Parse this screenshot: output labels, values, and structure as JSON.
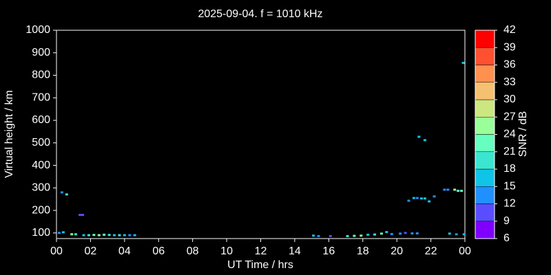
{
  "chart_data": {
    "type": "scatter",
    "title": "2025-09-04. f = 1010 kHz",
    "xlabel": "UT Time / hrs",
    "ylabel": "Virtual height / km",
    "colorbar_label": "SNR / dB",
    "xlim": [
      0,
      24
    ],
    "xticks": [
      {
        "value": 0,
        "label": "00"
      },
      {
        "value": 2,
        "label": "02"
      },
      {
        "value": 4,
        "label": "04"
      },
      {
        "value": 6,
        "label": "06"
      },
      {
        "value": 8,
        "label": "08"
      },
      10,
      12,
      14,
      16,
      18,
      20,
      22,
      {
        "value": 24,
        "label": "00"
      }
    ],
    "ylim": [
      75,
      1000
    ],
    "yticks": [
      100,
      200,
      300,
      400,
      500,
      600,
      700,
      800,
      900,
      1000
    ],
    "clim": [
      6,
      42
    ],
    "cticks": [
      6,
      9,
      12,
      15,
      18,
      21,
      24,
      27,
      30,
      33,
      36,
      39,
      42
    ],
    "colorscale": [
      "#8000ff",
      "#5a4dff",
      "#2090ff",
      "#10c4e8",
      "#3ae6d0",
      "#66ffbf",
      "#99ff99",
      "#cce680",
      "#f5c070",
      "#ff9050",
      "#ff5030",
      "#ff0000"
    ],
    "x": [
      0.16,
      0.4,
      0.32,
      0.6,
      0.9,
      1.13,
      1.38,
      1.54,
      1.6,
      1.9,
      2.2,
      2.5,
      2.8,
      3.1,
      3.4,
      3.7,
      4.0,
      4.3,
      4.6,
      15.1,
      15.4,
      16.1,
      17.1,
      17.5,
      17.9,
      18.3,
      18.7,
      19.1,
      19.4,
      19.7,
      20.2,
      20.5,
      20.9,
      21.2,
      20.7,
      21.0,
      21.2,
      21.45,
      21.65,
      21.9,
      22.2,
      21.3,
      21.65,
      22.8,
      23.0,
      23.4,
      23.6,
      23.8,
      23.9,
      23.1,
      23.5,
      23.95
    ],
    "y": [
      100,
      103,
      280,
      271,
      94,
      94,
      180,
      180,
      90,
      90,
      91,
      90,
      92,
      91,
      90,
      90,
      90,
      90,
      90,
      88,
      86,
      86,
      86,
      87,
      88,
      92,
      93,
      97,
      104,
      95,
      97,
      100,
      98,
      98,
      243,
      255,
      255,
      253,
      253,
      240,
      262,
      527,
      512,
      292,
      292,
      292,
      287,
      287,
      855,
      97,
      94,
      94
    ],
    "snr": [
      13,
      16,
      13,
      19,
      25,
      19,
      10,
      10,
      16,
      19,
      22,
      25,
      22,
      19,
      16,
      19,
      16,
      13,
      16,
      16,
      13,
      10,
      19,
      22,
      25,
      16,
      19,
      22,
      16,
      13,
      13,
      10,
      13,
      13,
      13,
      16,
      13,
      16,
      16,
      16,
      13,
      16,
      16,
      13,
      13,
      25,
      22,
      22,
      16,
      16,
      13,
      16
    ]
  }
}
